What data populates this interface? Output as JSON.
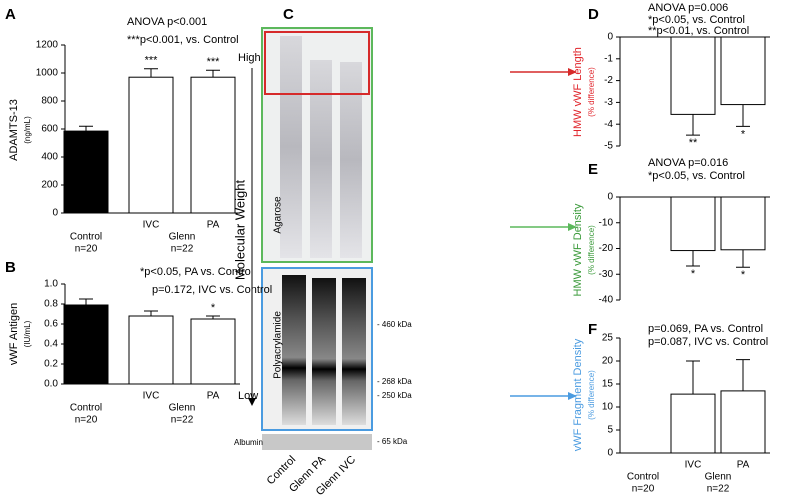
{
  "chart_data": [
    {
      "type": "bar",
      "panel": "A",
      "ylabel": "ADAMTS-13",
      "ylabel_unit": "(ng/mL)",
      "ylabel_color": "#000000",
      "annotations": [
        "ANOVA p<0.001",
        "***p<0.001, vs. Control"
      ],
      "categories": [
        "Control",
        "IVC",
        "PA"
      ],
      "control_n": "n=20",
      "group": "Glenn",
      "group_n": "n=22",
      "values": [
        585,
        970,
        970
      ],
      "errors": [
        35,
        60,
        50
      ],
      "significance": [
        null,
        "***",
        "***"
      ],
      "colors": [
        "#000000",
        "#ffffff",
        "#ffffff"
      ],
      "ylim": [
        0,
        1200
      ],
      "yticks": [
        0,
        200,
        400,
        600,
        800,
        1000,
        1200
      ]
    },
    {
      "type": "bar",
      "panel": "B",
      "ylabel": "vWF Antigen",
      "ylabel_unit": "(IU/mL)",
      "ylabel_color": "#000000",
      "annotations": [
        "*p<0.05, PA vs. Control",
        "p=0.172, IVC vs. Control"
      ],
      "categories": [
        "Control",
        "IVC",
        "PA"
      ],
      "control_n": "n=20",
      "group": "Glenn",
      "group_n": "n=22",
      "values": [
        0.79,
        0.68,
        0.65
      ],
      "errors": [
        0.06,
        0.05,
        0.03
      ],
      "significance": [
        null,
        null,
        "*"
      ],
      "colors": [
        "#000000",
        "#ffffff",
        "#ffffff"
      ],
      "ylim": [
        0,
        1.0
      ],
      "yticks": [
        {
          "value": 0,
          "label": "0.0"
        },
        0.2,
        0.4,
        0.6,
        0.8,
        {
          "value": 1.0,
          "label": "1.0"
        }
      ]
    },
    {
      "type": "bar",
      "panel": "D",
      "ylabel": "HMW vWF Length",
      "ylabel_unit": "(% difference)",
      "ylabel_color": "#e0242b",
      "annotations": [
        "ANOVA p=0.006",
        "*p<0.05, vs. Control",
        "**p<0.01, vs. Control"
      ],
      "categories": [
        null,
        null,
        null
      ],
      "values": [
        null,
        -3.55,
        -3.1
      ],
      "errors": [
        null,
        0.95,
        1.0
      ],
      "significance": [
        null,
        "**",
        "*"
      ],
      "colors": [
        "#ffffff",
        "#ffffff",
        "#ffffff"
      ],
      "ylim": [
        -5,
        0
      ],
      "yticks": [
        0,
        -1,
        -2,
        -3,
        -4,
        -5
      ]
    },
    {
      "type": "bar",
      "panel": "E",
      "ylabel": "HMW vWF Density",
      "ylabel_unit": "(% difference)",
      "ylabel_color": "#3a9a3a",
      "annotations": [
        "ANOVA p=0.016",
        "*p<0.05, vs. Control"
      ],
      "categories": [
        null,
        null,
        null
      ],
      "values": [
        null,
        -20.8,
        -20.5
      ],
      "errors": [
        null,
        6.0,
        6.8
      ],
      "significance": [
        null,
        "*",
        "*"
      ],
      "colors": [
        "#ffffff",
        "#ffffff",
        "#ffffff"
      ],
      "ylim": [
        -40,
        0
      ],
      "yticks": [
        0,
        -10,
        -20,
        -30,
        -40
      ]
    },
    {
      "type": "bar",
      "panel": "F",
      "ylabel": "vWF Fragment Density",
      "ylabel_unit": "(% difference)",
      "ylabel_color": "#4a9be0",
      "annotations": [
        "p=0.069, PA vs. Control",
        "p=0.087, IVC vs. Control"
      ],
      "categories": [
        "Control",
        "IVC",
        "PA"
      ],
      "control_n": "n=20",
      "group": "Glenn",
      "group_n": "n=22",
      "values": [
        null,
        12.8,
        13.5
      ],
      "errors": [
        null,
        7.2,
        6.8
      ],
      "significance": [
        null,
        null,
        null
      ],
      "colors": [
        "#ffffff",
        "#ffffff",
        "#ffffff"
      ],
      "ylim": [
        0,
        25
      ],
      "yticks": [
        0,
        5,
        10,
        15,
        20,
        25
      ]
    }
  ],
  "gel": {
    "panel": "C",
    "high": "High",
    "low": "Low",
    "axis_label": "Molecular Weight",
    "agarose": "Agarose",
    "polyacrylamide": "Polyacrylamide",
    "albumin": "Albumin",
    "markers": [
      "- 460 kDa",
      "- 268 kDa",
      "- 250 kDa",
      "- 65 kDa"
    ],
    "lanes": [
      "Control",
      "Glenn PA",
      "Glenn IVC"
    ]
  }
}
